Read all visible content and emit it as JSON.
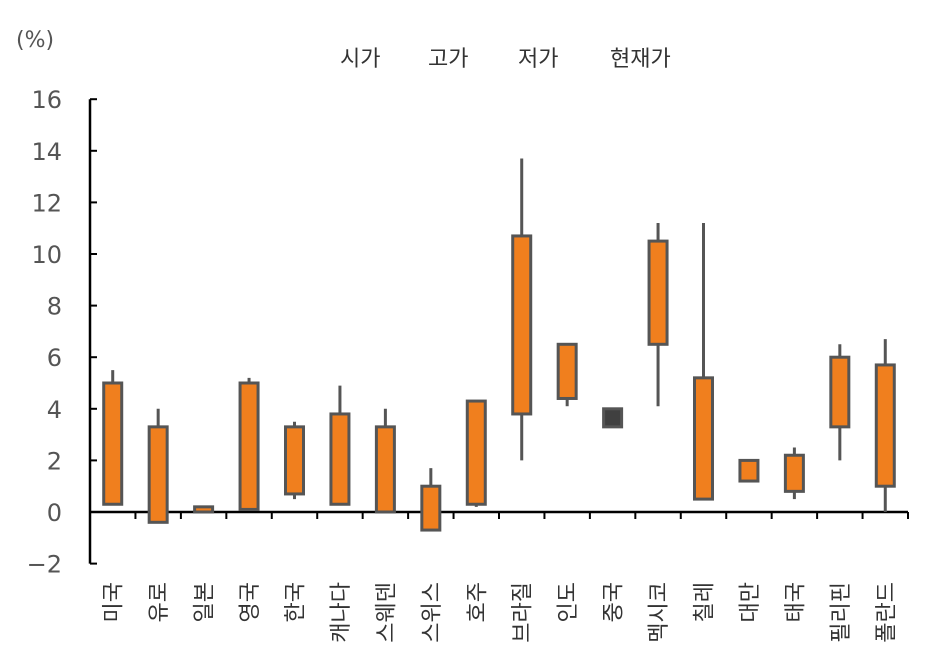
{
  "chart_data": {
    "type": "candlestick",
    "unit": "(%)",
    "legend": [
      "시가",
      "고가",
      "저가",
      "현재가"
    ],
    "ylim": [
      -2,
      16
    ],
    "yticks": [
      -2,
      0,
      2,
      4,
      6,
      8,
      10,
      12,
      14,
      16
    ],
    "ytick_labels": [
      "−2",
      "0",
      "2",
      "4",
      "6",
      "8",
      "10",
      "12",
      "14",
      "16"
    ],
    "colors": {
      "up": "#f07f1e",
      "down": "#404040",
      "stroke": "#555555",
      "axis": "#000000"
    },
    "categories": [
      "미국",
      "유로",
      "일본",
      "영국",
      "한국",
      "캐나다",
      "스웨덴",
      "스위스",
      "호주",
      "브라질",
      "인도",
      "중국",
      "멕시코",
      "칠레",
      "대만",
      "태국",
      "필리핀",
      "폴란드"
    ],
    "series": [
      {
        "open": 0.3,
        "high": 5.5,
        "low": 0.3,
        "close": 5.0
      },
      {
        "open": -0.4,
        "high": 4.0,
        "low": -0.4,
        "close": 3.3
      },
      {
        "open": 0.0,
        "high": 0.2,
        "low": 0.0,
        "close": 0.2
      },
      {
        "open": 0.1,
        "high": 5.2,
        "low": 0.1,
        "close": 5.0
      },
      {
        "open": 0.7,
        "high": 3.5,
        "low": 0.5,
        "close": 3.3
      },
      {
        "open": 0.3,
        "high": 4.9,
        "low": 0.3,
        "close": 3.8
      },
      {
        "open": 0.0,
        "high": 4.0,
        "low": 0.0,
        "close": 3.3
      },
      {
        "open": -0.7,
        "high": 1.7,
        "low": -0.7,
        "close": 1.0
      },
      {
        "open": 0.3,
        "high": 4.3,
        "low": 0.2,
        "close": 4.3
      },
      {
        "open": 3.8,
        "high": 13.7,
        "low": 2.0,
        "close": 10.7
      },
      {
        "open": 4.4,
        "high": 6.5,
        "low": 4.1,
        "close": 6.5
      },
      {
        "open": 4.0,
        "high": 4.0,
        "low": 3.3,
        "close": 3.3
      },
      {
        "open": 6.5,
        "high": 11.2,
        "low": 4.1,
        "close": 10.5
      },
      {
        "open": 0.5,
        "high": 11.2,
        "low": 0.5,
        "close": 5.2
      },
      {
        "open": 1.2,
        "high": 2.0,
        "low": 1.2,
        "close": 2.0
      },
      {
        "open": 0.8,
        "high": 2.5,
        "low": 0.5,
        "close": 2.2
      },
      {
        "open": 3.3,
        "high": 6.5,
        "low": 2.0,
        "close": 6.0
      },
      {
        "open": 1.0,
        "high": 6.7,
        "low": 0.0,
        "close": 5.7
      }
    ]
  }
}
